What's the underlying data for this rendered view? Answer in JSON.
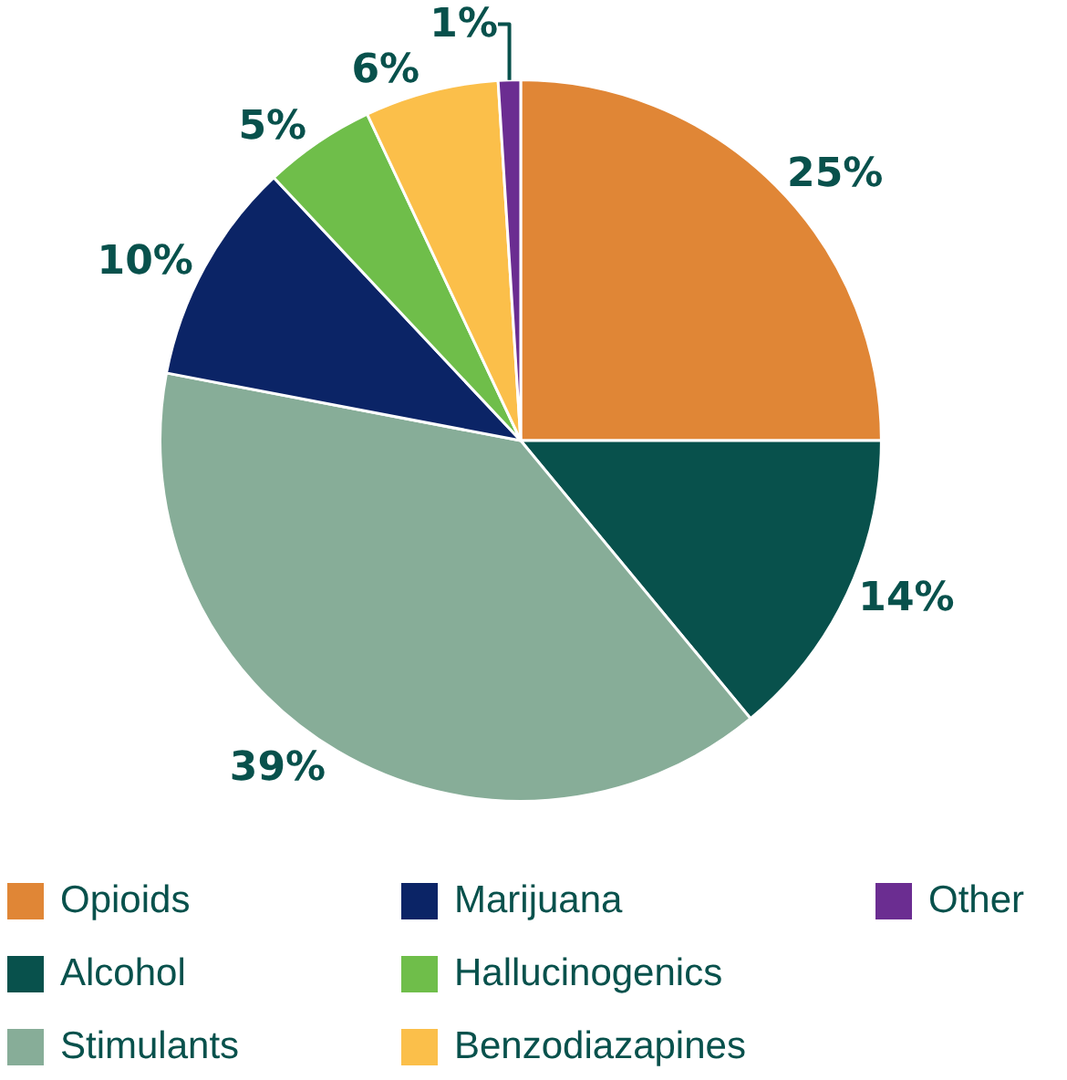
{
  "chart_data": {
    "type": "pie",
    "categories": [
      "Opioids",
      "Alcohol",
      "Stimulants",
      "Marijuana",
      "Hallucinogenics",
      "Benzodiazapines",
      "Other"
    ],
    "values": [
      25,
      14,
      39,
      10,
      5,
      6,
      1
    ],
    "colors": [
      "#e08636",
      "#08514c",
      "#87ad98",
      "#0b2466",
      "#6fbe4a",
      "#fbbf4a",
      "#6b2d91"
    ],
    "value_labels": [
      "25%",
      "14%",
      "39%",
      "10%",
      "5%",
      "6%",
      "1%"
    ],
    "legend": "bottom"
  }
}
